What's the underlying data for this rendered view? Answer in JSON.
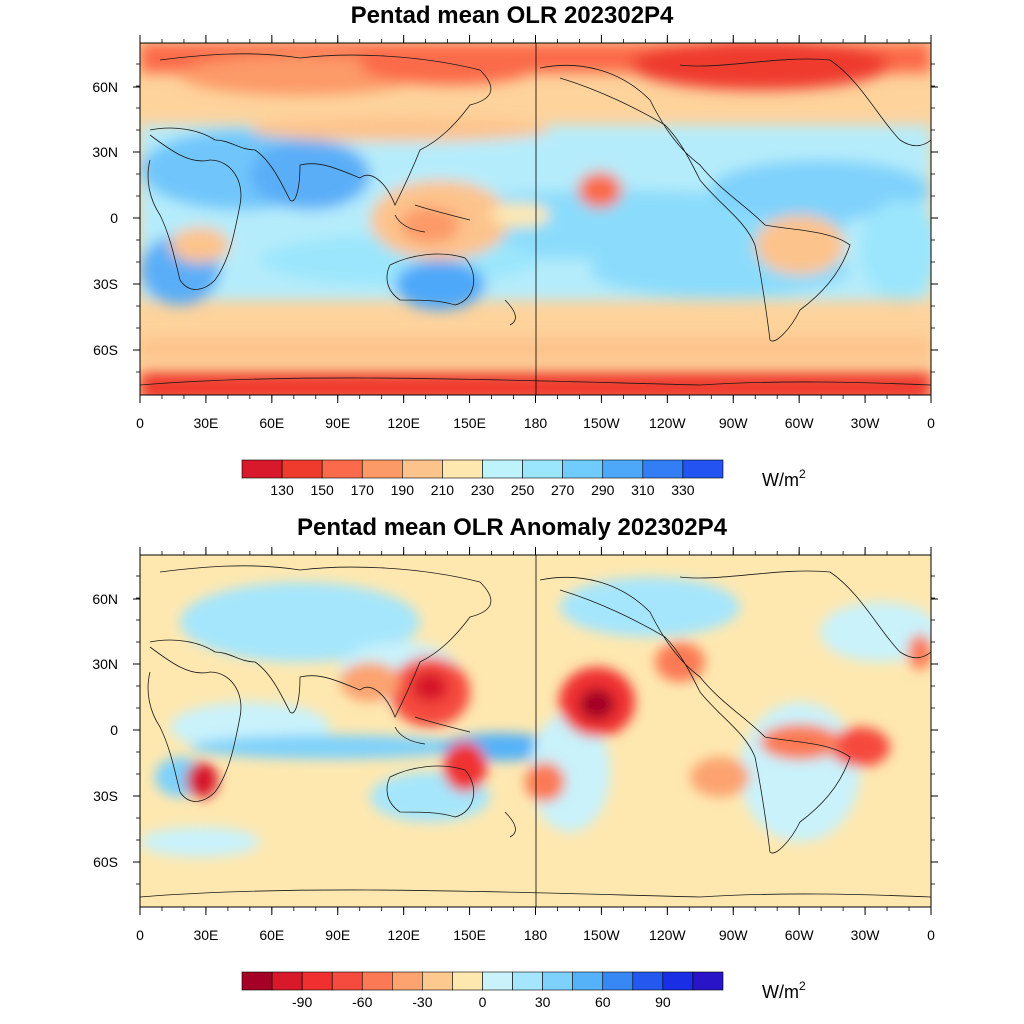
{
  "maps": [
    {
      "title": "Pentad mean OLR 202302P4",
      "units": "W/m",
      "units_sup": "2",
      "lat_labels": [
        "60N",
        "30N",
        "0",
        "30S",
        "60S"
      ],
      "lon_labels": [
        "0",
        "30E",
        "60E",
        "90E",
        "120E",
        "150E",
        "180",
        "150W",
        "120W",
        "90W",
        "60W",
        "30W",
        "0"
      ],
      "colorbar": {
        "colors": [
          "#d7192b",
          "#ef3b2e",
          "#fb6a4a",
          "#fc9a67",
          "#fdc38c",
          "#fee8b0",
          "#bff3fb",
          "#9be6fc",
          "#70ccfc",
          "#4ea8f9",
          "#347ef5",
          "#2353f0"
        ],
        "labels": [
          "130",
          "150",
          "170",
          "190",
          "210",
          "230",
          "250",
          "270",
          "290",
          "310",
          "330"
        ]
      }
    },
    {
      "title": "Pentad mean OLR Anomaly 202302P4",
      "units": "W/m",
      "units_sup": "2",
      "lat_labels": [
        "60N",
        "30N",
        "0",
        "30S",
        "60S"
      ],
      "lon_labels": [
        "0",
        "30E",
        "60E",
        "90E",
        "120E",
        "150E",
        "180",
        "150W",
        "120W",
        "90W",
        "60W",
        "30W",
        "0"
      ],
      "colorbar": {
        "colors": [
          "#a50026",
          "#d7192b",
          "#f03030",
          "#f54a3e",
          "#fb7a55",
          "#fca36f",
          "#fdc98e",
          "#fee8b0",
          "#c9f2fb",
          "#a6e6fc",
          "#7ed1fb",
          "#55b2f8",
          "#3787f4",
          "#2458ef",
          "#1a2ee6",
          "#2a14c8"
        ],
        "labels": [
          "-90",
          "-60",
          "-30",
          "0",
          "30",
          "60",
          "90"
        ]
      }
    }
  ]
}
